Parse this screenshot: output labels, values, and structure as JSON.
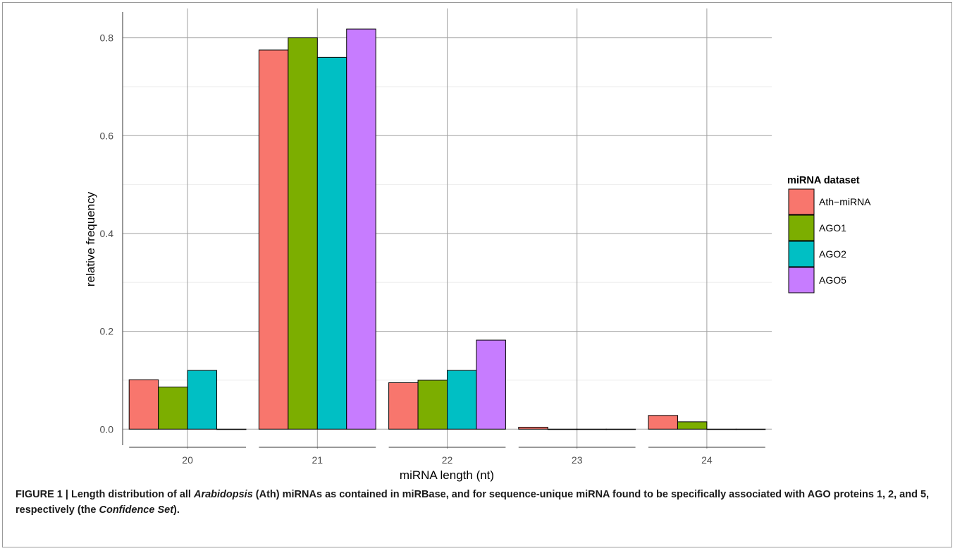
{
  "chart_data": {
    "type": "bar",
    "xlabel": "miRNA length (nt)",
    "ylabel": "relative frequency",
    "categories": [
      "20",
      "21",
      "22",
      "23",
      "24"
    ],
    "ylim": [
      -0.04,
      0.86
    ],
    "yticks": [
      "0.0",
      "0.2",
      "0.4",
      "0.6",
      "0.8"
    ],
    "grid": true,
    "legend": {
      "title": "miRNA dataset",
      "position": "right"
    },
    "series": [
      {
        "name": "Ath−miRNA",
        "color": "#F8766D",
        "values": [
          0.101,
          0.775,
          0.095,
          0.004,
          0.028
        ]
      },
      {
        "name": "AGO1",
        "color": "#7CAE00",
        "values": [
          0.086,
          0.8,
          0.1,
          0.0,
          0.015
        ]
      },
      {
        "name": "AGO2",
        "color": "#00BFC4",
        "values": [
          0.12,
          0.76,
          0.12,
          0.0,
          0.0
        ]
      },
      {
        "name": "AGO5",
        "color": "#C77CFF",
        "values": [
          0.0,
          0.818,
          0.182,
          0.0,
          0.0
        ]
      }
    ]
  },
  "caption": {
    "lead": "FIGURE 1 | Length distribution of all ",
    "italic1": "Arabidopsis",
    "mid": " (Ath) miRNAs as contained in miRBase, and for sequence-unique miRNA found to be specifically associated with AGO proteins 1, 2, and 5, respectively (the ",
    "italic2": "Confidence Set",
    "tail": ")."
  }
}
